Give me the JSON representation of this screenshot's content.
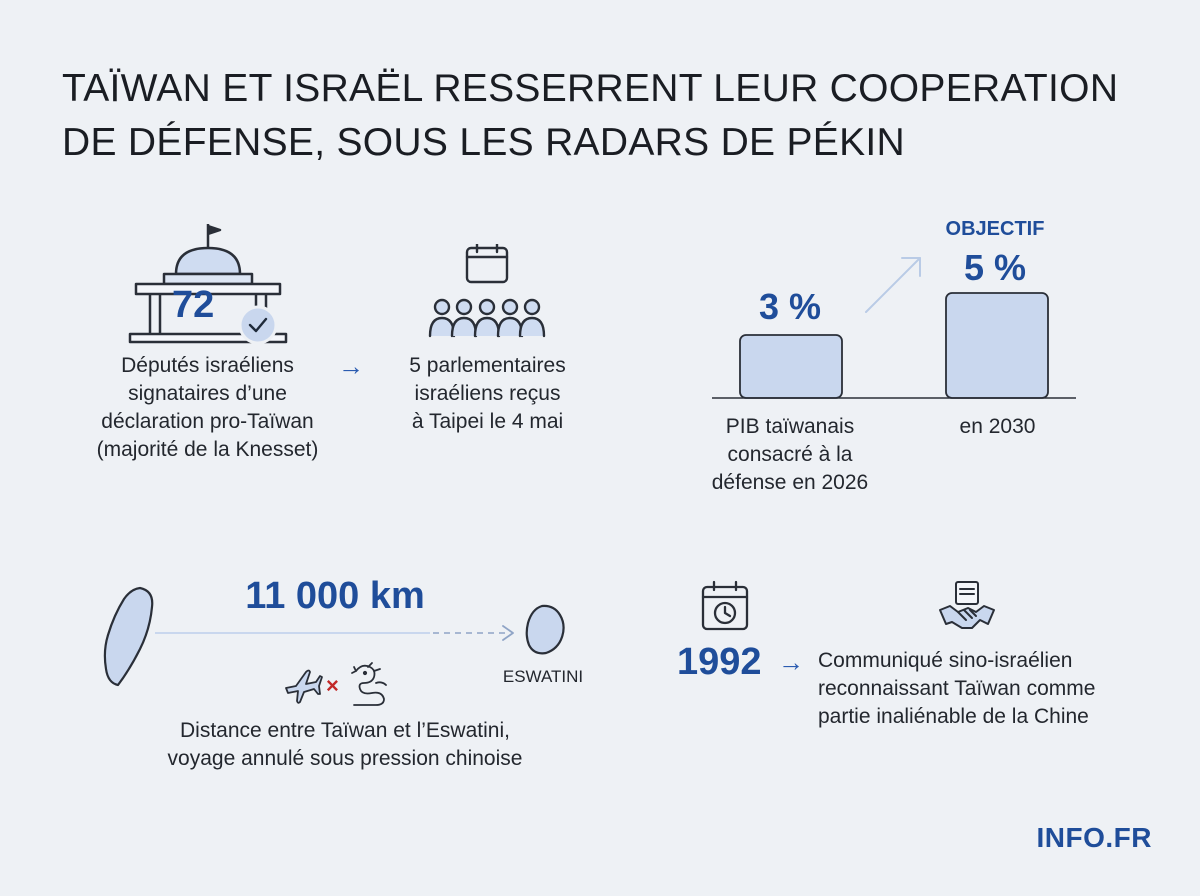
{
  "title": {
    "line1": "Taïwan et Israël resserrent leur cooperation",
    "line2": "de défense, sous les radars de Pékin"
  },
  "stat_deputies": {
    "number": "72",
    "icon": "parliament-building-icon",
    "label_lines": [
      "Députés israéliens",
      "signataires d’une",
      "déclaration pro-Taïwan",
      "(majorité de la Knesset)"
    ]
  },
  "stat_delegation": {
    "icon": "delegation-group-icon",
    "label_lines": [
      "5 parlementaires",
      "israéliens reçus",
      "à Taipei le 4 mai"
    ]
  },
  "gdp": {
    "objective_label": "OBJECTIF",
    "current_value_label": "3 %",
    "target_value_label": "5 %",
    "current_caption_lines": [
      "PIB taïwanais",
      "consacré à la",
      "défense en 2026"
    ],
    "target_caption": "en 2030"
  },
  "chart_data": {
    "type": "bar",
    "categories": [
      "PIB taïwanais consacré à la défense en 2026",
      "en 2030"
    ],
    "values": [
      3,
      5
    ],
    "title": "",
    "xlabel": "",
    "ylabel": "",
    "ylim": [
      0,
      8
    ]
  },
  "distance": {
    "value": "11 000 km",
    "destination": "ESWATINI",
    "caption_lines": [
      "Distance entre Taïwan et l’Eswatini,",
      "voyage annulé sous pression chinoise"
    ]
  },
  "communique": {
    "year": "1992",
    "text_lines": [
      "Communiqué sino-israélien",
      "reconnaissant Taïwan comme",
      "partie inaliénable de la Chine"
    ]
  },
  "footer": {
    "logo": "INFO.FR"
  },
  "colors": {
    "accent": "#1f4d9a",
    "bar_fill": "#c9d7ee",
    "background": "#eef1f5"
  }
}
